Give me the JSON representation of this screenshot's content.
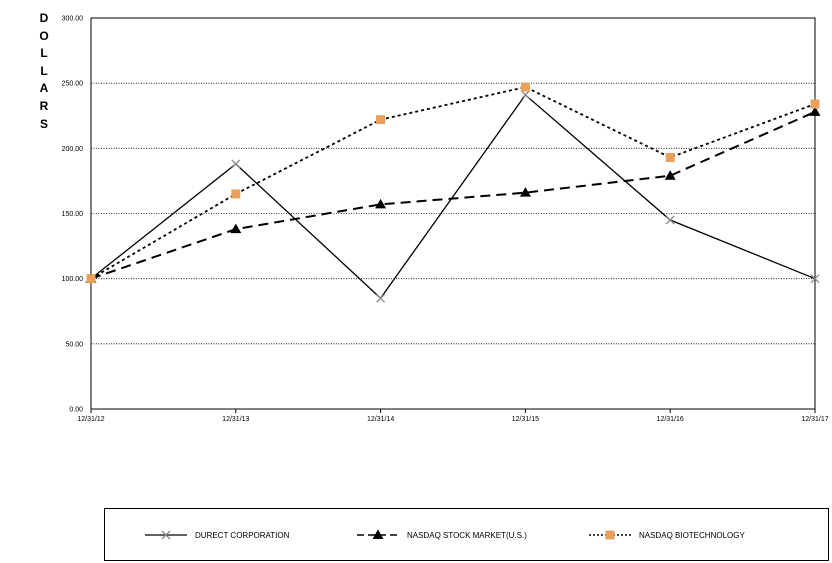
{
  "chart_data": {
    "type": "line",
    "ylabel": "DOLLARS",
    "xlabel": "",
    "title": "",
    "categories": [
      "12/31/12",
      "12/31/13",
      "12/31/14",
      "12/31/15",
      "12/31/16",
      "12/31/17"
    ],
    "ylim": [
      0,
      300
    ],
    "yticks": [
      0,
      50,
      100,
      150,
      200,
      250,
      300
    ],
    "ytick_labels": [
      "0.00",
      "50.00",
      "100.00",
      "150.00",
      "200.00",
      "250.00",
      "300.00"
    ],
    "grid": true,
    "legend_position": "bottom",
    "series": [
      {
        "name": "DURECT CORPORATION",
        "values": [
          100,
          188,
          85,
          241,
          145,
          100
        ],
        "color": "#000000",
        "marker_color": "#8a8a8a",
        "style": "solid",
        "marker": "x"
      },
      {
        "name": "NASDAQ STOCK MARKET(U.S.)",
        "values": [
          100,
          138,
          157,
          166,
          179,
          228
        ],
        "color": "#000000",
        "marker_color": "#000000",
        "style": "dashed",
        "marker": "triangle"
      },
      {
        "name": "NASDAQ BIOTECHNOLOGY",
        "values": [
          100,
          165,
          222,
          247,
          193,
          234
        ],
        "color": "#000000",
        "marker_color": "#e8a05a",
        "style": "dotted",
        "marker": "square"
      }
    ]
  }
}
